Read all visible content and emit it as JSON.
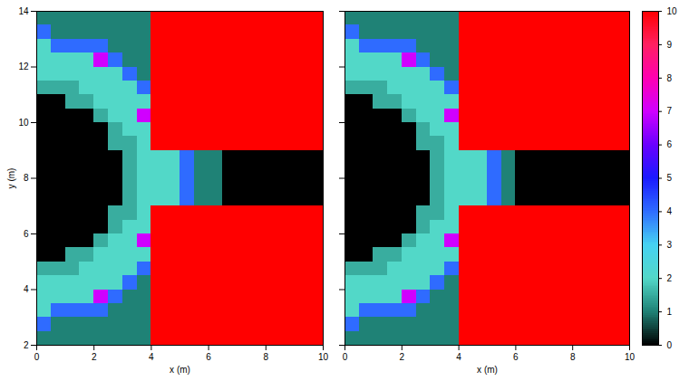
{
  "chart_data": [
    {
      "type": "heatmap",
      "x_label": "x (m)",
      "y_label": "y (m)",
      "xlim": [
        0,
        10
      ],
      "ylim": [
        2,
        14
      ],
      "xticks": [
        0,
        2,
        4,
        6,
        8,
        10
      ],
      "yticks": [
        2,
        4,
        6,
        8,
        10,
        12,
        14
      ],
      "cells": [
        [
          1,
          1,
          1,
          1,
          1,
          1,
          1,
          1,
          10,
          10,
          10,
          10,
          10,
          10,
          10,
          10,
          10,
          10,
          10,
          10
        ],
        [
          4,
          1,
          1,
          1,
          1,
          1,
          1,
          1,
          10,
          10,
          10,
          10,
          10,
          10,
          10,
          10,
          10,
          10,
          10,
          10
        ],
        [
          2,
          4,
          4,
          4,
          4,
          1,
          1,
          1,
          10,
          10,
          10,
          10,
          10,
          10,
          10,
          10,
          10,
          10,
          10,
          10
        ],
        [
          2,
          2,
          2,
          2,
          7,
          4,
          1,
          1,
          10,
          10,
          10,
          10,
          10,
          10,
          10,
          10,
          10,
          10,
          10,
          10
        ],
        [
          2,
          2,
          2,
          2,
          2,
          2,
          4,
          1,
          10,
          10,
          10,
          10,
          10,
          10,
          10,
          10,
          10,
          10,
          10,
          10
        ],
        [
          1.5,
          1.5,
          1.5,
          2,
          2,
          2,
          2,
          4,
          10,
          10,
          10,
          10,
          10,
          10,
          10,
          10,
          10,
          10,
          10,
          10
        ],
        [
          0,
          0,
          1.5,
          1.5,
          2,
          2,
          2,
          2,
          10,
          10,
          10,
          10,
          10,
          10,
          10,
          10,
          10,
          10,
          10,
          10
        ],
        [
          0,
          0,
          0,
          0,
          1.5,
          2,
          2,
          7,
          10,
          10,
          10,
          10,
          10,
          10,
          10,
          10,
          10,
          10,
          10,
          10
        ],
        [
          0,
          0,
          0,
          0,
          0,
          1.5,
          2,
          2,
          10,
          10,
          10,
          10,
          10,
          10,
          10,
          10,
          10,
          10,
          10,
          10
        ],
        [
          0,
          0,
          0,
          0,
          0,
          1.5,
          1.5,
          2,
          10,
          10,
          10,
          10,
          10,
          10,
          10,
          10,
          10,
          10,
          10,
          10
        ],
        [
          0,
          0,
          0,
          0,
          0,
          0,
          1.5,
          2,
          2,
          2,
          4,
          1,
          1,
          0,
          0,
          0,
          0,
          0,
          0,
          0
        ],
        [
          0,
          0,
          0,
          0,
          0,
          0,
          1.5,
          2,
          2,
          2,
          4,
          1,
          1,
          0,
          0,
          0,
          0,
          0,
          0,
          0
        ],
        [
          0,
          0,
          0,
          0,
          0,
          0,
          1.5,
          2,
          2,
          2,
          4,
          1,
          1,
          0,
          0,
          0,
          0,
          0,
          0,
          0
        ],
        [
          0,
          0,
          0,
          0,
          0,
          0,
          1.5,
          2,
          2,
          2,
          4,
          1,
          1,
          0,
          0,
          0,
          0,
          0,
          0,
          0
        ],
        [
          0,
          0,
          0,
          0,
          0,
          1.5,
          1.5,
          2,
          10,
          10,
          10,
          10,
          10,
          10,
          10,
          10,
          10,
          10,
          10,
          10
        ],
        [
          0,
          0,
          0,
          0,
          0,
          1.5,
          2,
          2,
          10,
          10,
          10,
          10,
          10,
          10,
          10,
          10,
          10,
          10,
          10,
          10
        ],
        [
          0,
          0,
          0,
          0,
          1.5,
          2,
          2,
          7,
          10,
          10,
          10,
          10,
          10,
          10,
          10,
          10,
          10,
          10,
          10,
          10
        ],
        [
          0,
          0,
          1.5,
          1.5,
          2,
          2,
          2,
          2,
          10,
          10,
          10,
          10,
          10,
          10,
          10,
          10,
          10,
          10,
          10,
          10
        ],
        [
          1.5,
          1.5,
          1.5,
          2,
          2,
          2,
          2,
          4,
          10,
          10,
          10,
          10,
          10,
          10,
          10,
          10,
          10,
          10,
          10,
          10
        ],
        [
          2,
          2,
          2,
          2,
          2,
          2,
          4,
          1,
          10,
          10,
          10,
          10,
          10,
          10,
          10,
          10,
          10,
          10,
          10,
          10
        ],
        [
          2,
          2,
          2,
          2,
          7,
          4,
          1,
          1,
          10,
          10,
          10,
          10,
          10,
          10,
          10,
          10,
          10,
          10,
          10,
          10
        ],
        [
          2,
          4,
          4,
          4,
          4,
          1,
          1,
          1,
          10,
          10,
          10,
          10,
          10,
          10,
          10,
          10,
          10,
          10,
          10,
          10
        ],
        [
          4,
          1,
          1,
          1,
          1,
          1,
          1,
          1,
          10,
          10,
          10,
          10,
          10,
          10,
          10,
          10,
          10,
          10,
          10,
          10
        ],
        [
          1,
          1,
          1,
          1,
          1,
          1,
          1,
          1,
          10,
          10,
          10,
          10,
          10,
          10,
          10,
          10,
          10,
          10,
          10,
          10
        ]
      ]
    },
    {
      "type": "heatmap",
      "x_label": "x (m)",
      "tick_labels": "x",
      "xlim": [
        0,
        10
      ],
      "ylim": [
        2,
        14
      ],
      "xticks": [
        0,
        2,
        4,
        6,
        8,
        10
      ],
      "yticks": [
        2,
        4,
        6,
        8,
        10,
        12,
        14
      ],
      "cells": [
        [
          1,
          1,
          1,
          1,
          1,
          1,
          1,
          1,
          10,
          10,
          10,
          10,
          10,
          10,
          10,
          10,
          10,
          10,
          10,
          10
        ],
        [
          4,
          1,
          1,
          1,
          1,
          1,
          1,
          1,
          10,
          10,
          10,
          10,
          10,
          10,
          10,
          10,
          10,
          10,
          10,
          10
        ],
        [
          2,
          4,
          4,
          4,
          4,
          1,
          1,
          1,
          10,
          10,
          10,
          10,
          10,
          10,
          10,
          10,
          10,
          10,
          10,
          10
        ],
        [
          2,
          2,
          2,
          2,
          7,
          4,
          1,
          1,
          10,
          10,
          10,
          10,
          10,
          10,
          10,
          10,
          10,
          10,
          10,
          10
        ],
        [
          2,
          2,
          2,
          2,
          2,
          2,
          4,
          1,
          10,
          10,
          10,
          10,
          10,
          10,
          10,
          10,
          10,
          10,
          10,
          10
        ],
        [
          1.5,
          1.5,
          1.5,
          2,
          2,
          2,
          2,
          4,
          10,
          10,
          10,
          10,
          10,
          10,
          10,
          10,
          10,
          10,
          10,
          10
        ],
        [
          0,
          0,
          1.5,
          1.5,
          2,
          2,
          2,
          2,
          10,
          10,
          10,
          10,
          10,
          10,
          10,
          10,
          10,
          10,
          10,
          10
        ],
        [
          0,
          0,
          0,
          0,
          1.5,
          2,
          2,
          7,
          10,
          10,
          10,
          10,
          10,
          10,
          10,
          10,
          10,
          10,
          10,
          10
        ],
        [
          0,
          0,
          0,
          0,
          0,
          1.5,
          2,
          2,
          10,
          10,
          10,
          10,
          10,
          10,
          10,
          10,
          10,
          10,
          10,
          10
        ],
        [
          0,
          0,
          0,
          0,
          0,
          1.5,
          1.5,
          2,
          10,
          10,
          10,
          10,
          10,
          10,
          10,
          10,
          10,
          10,
          10,
          10
        ],
        [
          0,
          0,
          0,
          0,
          0,
          0,
          1.5,
          2,
          2,
          2,
          4,
          1,
          0,
          0,
          0,
          0,
          0,
          0,
          0,
          0
        ],
        [
          0,
          0,
          0,
          0,
          0,
          0,
          1.5,
          2,
          2,
          2,
          4,
          1,
          0,
          0,
          0,
          0,
          0,
          0,
          0,
          0
        ],
        [
          0,
          0,
          0,
          0,
          0,
          0,
          1.5,
          2,
          2,
          2,
          4,
          1,
          0,
          0,
          0,
          0,
          0,
          0,
          0,
          0
        ],
        [
          0,
          0,
          0,
          0,
          0,
          0,
          1.5,
          2,
          2,
          2,
          4,
          1,
          0,
          0,
          0,
          0,
          0,
          0,
          0,
          0
        ],
        [
          0,
          0,
          0,
          0,
          0,
          1.5,
          1.5,
          2,
          10,
          10,
          10,
          10,
          10,
          10,
          10,
          10,
          10,
          10,
          10,
          10
        ],
        [
          0,
          0,
          0,
          0,
          0,
          1.5,
          2,
          2,
          10,
          10,
          10,
          10,
          10,
          10,
          10,
          10,
          10,
          10,
          10,
          10
        ],
        [
          0,
          0,
          0,
          0,
          1.5,
          2,
          2,
          7,
          10,
          10,
          10,
          10,
          10,
          10,
          10,
          10,
          10,
          10,
          10,
          10
        ],
        [
          0,
          0,
          1.5,
          1.5,
          2,
          2,
          2,
          2,
          10,
          10,
          10,
          10,
          10,
          10,
          10,
          10,
          10,
          10,
          10,
          10
        ],
        [
          1.5,
          1.5,
          1.5,
          2,
          2,
          2,
          2,
          4,
          10,
          10,
          10,
          10,
          10,
          10,
          10,
          10,
          10,
          10,
          10,
          10
        ],
        [
          2,
          2,
          2,
          2,
          2,
          2,
          4,
          1,
          10,
          10,
          10,
          10,
          10,
          10,
          10,
          10,
          10,
          10,
          10,
          10
        ],
        [
          2,
          2,
          2,
          2,
          7,
          4,
          1,
          1,
          10,
          10,
          10,
          10,
          10,
          10,
          10,
          10,
          10,
          10,
          10,
          10
        ],
        [
          2,
          4,
          4,
          4,
          4,
          1,
          1,
          1,
          10,
          10,
          10,
          10,
          10,
          10,
          10,
          10,
          10,
          10,
          10,
          10
        ],
        [
          4,
          1,
          1,
          1,
          1,
          1,
          1,
          1,
          10,
          10,
          10,
          10,
          10,
          10,
          10,
          10,
          10,
          10,
          10,
          10
        ],
        [
          1,
          1,
          1,
          1,
          1,
          1,
          1,
          1,
          10,
          10,
          10,
          10,
          10,
          10,
          10,
          10,
          10,
          10,
          10,
          10
        ]
      ]
    }
  ],
  "colorbar": {
    "range": [
      0,
      10
    ],
    "ticks": [
      0,
      1,
      2,
      3,
      4,
      5,
      6,
      7,
      8,
      9,
      10
    ]
  }
}
